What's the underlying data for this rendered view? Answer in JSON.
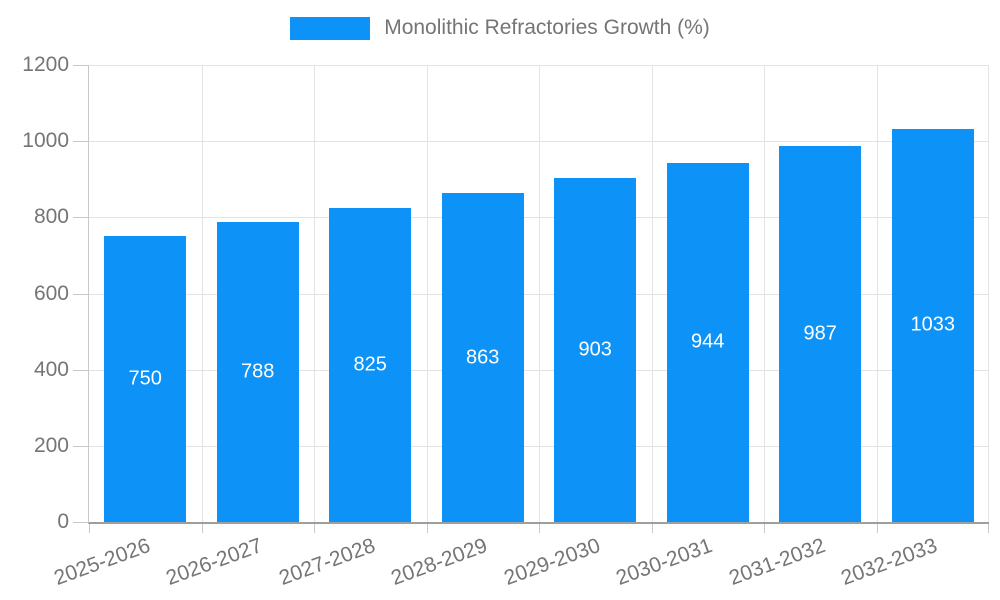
{
  "legend": {
    "label": "Monolithic Refractories Growth (%)"
  },
  "colors": {
    "bar": "#0D92F8",
    "value_label": "#ffffff",
    "axis_text": "#757575",
    "gridline": "#e3e3e3",
    "axis_line": "#9e9e9e",
    "tick": "#c8c8c8",
    "background": "#ffffff"
  },
  "chart_data": {
    "type": "bar",
    "title": "",
    "xlabel": "",
    "ylabel": "",
    "categories": [
      "2025-2026",
      "2026-2027",
      "2027-2028",
      "2028-2029",
      "2029-2030",
      "2030-2031",
      "2031-2032",
      "2032-2033"
    ],
    "series": [
      {
        "name": "Monolithic Refractories Growth (%)",
        "values": [
          750,
          788,
          825,
          863,
          903,
          944,
          987,
          1033
        ]
      }
    ],
    "ylim": [
      0,
      1200
    ],
    "yticks": [
      0,
      200,
      400,
      600,
      800,
      1000,
      1200
    ],
    "grid": true,
    "legend_position": "top-center",
    "value_labels": "inside-center",
    "x_label_rotation_deg": -20
  }
}
